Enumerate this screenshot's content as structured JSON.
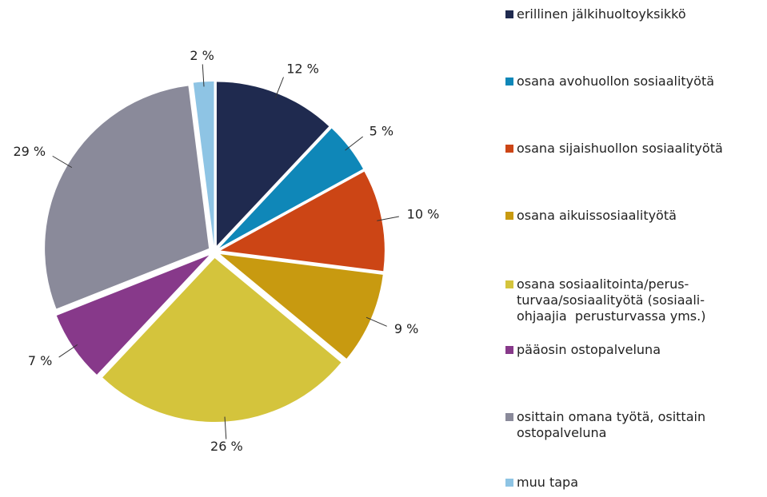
{
  "chart_data": {
    "type": "pie",
    "categories": [
      "erillinen jälkihuoltoyksikkö",
      "osana avohuollon sosiaalityötä",
      "osana sijaishuollon sosiaalityötä",
      "osana aikuissosiaalityötä",
      "osana sosiaalitointa/perus-\nturvaa/sosiaalityötä (sosiaali-\nohjaajia  perusturvassa yms.)",
      "pääosin ostopalveluna",
      "osittain omana työtä, osittain\nostopalveluna",
      "muu tapa"
    ],
    "values": [
      12,
      5,
      10,
      9,
      26,
      7,
      29,
      2
    ],
    "value_labels": [
      "12 %",
      "5 %",
      "10 %",
      "9 %",
      "26 %",
      "7 %",
      "29 %",
      "2 %"
    ],
    "colors": [
      "#1f2a4f",
      "#0f87b8",
      "#cc4515",
      "#c89a10",
      "#d4c43c",
      "#87398a",
      "#8a8a9a",
      "#8ec4e4"
    ],
    "legend": "right"
  }
}
